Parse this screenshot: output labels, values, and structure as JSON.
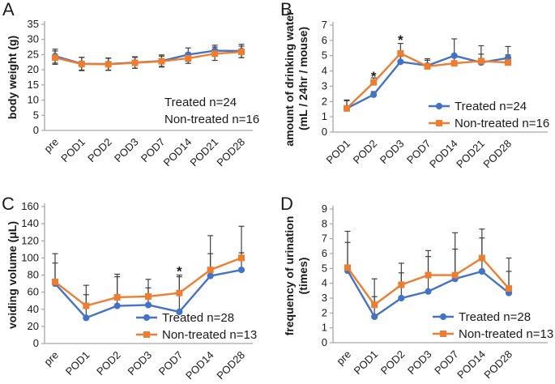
{
  "figure": {
    "description": "Four-panel line figure with error bars comparing Treated vs Non-treated mice over post-operative days"
  },
  "style_colors": {
    "treated": "#4472C4",
    "non_treated": "#ED7D31",
    "error_bar": "#404040",
    "axis": "#A6A6A6",
    "text": "#1A1A1A",
    "background": "#FFFFFF"
  },
  "chart_data": [
    {
      "type": "line",
      "panel": "A",
      "title": "",
      "xlabel": "",
      "ylabel": "body weight (g)",
      "ylabel_lines": [
        "body weight (g)"
      ],
      "ylim": [
        0,
        35
      ],
      "ystep": 5,
      "grid": false,
      "categories": [
        "pre",
        "POD1",
        "POD2",
        "POD3",
        "POD7",
        "POD14",
        "POD21",
        "POD28"
      ],
      "series": [
        {
          "name": "Treated n=24",
          "marker": "circle",
          "color": "#4472C4",
          "values": [
            24.5,
            22.0,
            21.9,
            22.4,
            22.9,
            25.0,
            26.3,
            26.2
          ],
          "err_up": [
            2.3,
            2.1,
            2.0,
            1.9,
            2.0,
            2.2,
            1.8,
            2.2
          ],
          "err_down": [
            2.3,
            2.1,
            2.0,
            1.9,
            2.0,
            2.2,
            1.8,
            2.2
          ]
        },
        {
          "name": "Non-treated n=16",
          "marker": "square",
          "color": "#ED7D31",
          "values": [
            24.0,
            21.9,
            21.8,
            22.3,
            22.8,
            23.8,
            25.3,
            25.9
          ],
          "err_up": [
            2.2,
            2.2,
            2.0,
            1.8,
            1.7,
            1.7,
            2.2,
            1.9
          ],
          "err_down": [
            2.2,
            2.2,
            2.0,
            1.8,
            1.7,
            1.7,
            2.2,
            1.9
          ]
        }
      ],
      "legend": {
        "style": "text",
        "position": "inside-right-bottom"
      },
      "annotations": []
    },
    {
      "type": "line",
      "panel": "B",
      "title": "",
      "xlabel": "",
      "ylabel": "amount of drinking water (mL / 24hr / mouse)",
      "ylabel_lines": [
        "amount of drinking water",
        "(mL / 24hr / mouse)"
      ],
      "ylim": [
        0,
        7
      ],
      "ystep": 1,
      "grid": false,
      "categories": [
        "POD1",
        "POD2",
        "POD3",
        "POD7",
        "POD14",
        "POD21",
        "POD28"
      ],
      "series": [
        {
          "name": "Treated n=24",
          "marker": "circle",
          "color": "#4472C4",
          "values": [
            1.55,
            2.45,
            4.6,
            4.35,
            5.0,
            4.55,
            4.85
          ],
          "err_up": [
            0.55,
            0.2,
            0.35,
            0.45,
            1.1,
            0.55,
            0.75
          ],
          "err_down": [
            0,
            0,
            0,
            0,
            0,
            0,
            0
          ]
        },
        {
          "name": "Non-treated n=16",
          "marker": "square",
          "color": "#ED7D31",
          "values": [
            1.55,
            3.25,
            5.15,
            4.3,
            4.5,
            4.65,
            4.55
          ],
          "err_up": [
            0.5,
            0.3,
            0.65,
            0.4,
            0.4,
            1.0,
            0.5
          ],
          "err_down": [
            0,
            0,
            0,
            0,
            0,
            0,
            0
          ]
        }
      ],
      "legend": {
        "style": "marker",
        "position": "inside-right-bottom"
      },
      "annotations": [
        {
          "category": "POD2",
          "y": 3.6,
          "label": "*"
        },
        {
          "category": "POD3",
          "y": 6.0,
          "label": "*"
        }
      ]
    },
    {
      "type": "line",
      "panel": "C",
      "title": "",
      "xlabel": "",
      "ylabel": "voiding volume (μL)",
      "ylabel_lines": [
        "voiding volume (μL)"
      ],
      "ylim": [
        0,
        160
      ],
      "ystep": 20,
      "grid": false,
      "categories": [
        "pre",
        "POD1",
        "POD2",
        "POD3",
        "POD7",
        "POD14",
        "POD28"
      ],
      "series": [
        {
          "name": "Treated n=28",
          "marker": "circle",
          "color": "#4472C4",
          "values": [
            70,
            30,
            44,
            45,
            37,
            79,
            86
          ],
          "err_up": [
            24,
            27,
            34,
            20,
            41,
            26,
            20
          ],
          "err_down": [
            0,
            0,
            0,
            0,
            0,
            0,
            0
          ]
        },
        {
          "name": "Non-treated n=13",
          "marker": "square",
          "color": "#ED7D31",
          "values": [
            72,
            44,
            54,
            55,
            59,
            86,
            100
          ],
          "err_up": [
            33,
            24,
            27,
            20,
            21,
            40,
            37
          ],
          "err_down": [
            0,
            0,
            0,
            0,
            0,
            0,
            0
          ]
        }
      ],
      "legend": {
        "style": "marker",
        "position": "inside-right-bottom"
      },
      "annotations": [
        {
          "category": "POD7",
          "y": 84,
          "label": "*"
        }
      ]
    },
    {
      "type": "line",
      "panel": "D",
      "title": "",
      "xlabel": "",
      "ylabel": "frequency of urination (times)",
      "ylabel_lines": [
        "frequency of urination",
        "(times)"
      ],
      "ylim": [
        0,
        9
      ],
      "ystep": 1,
      "grid": false,
      "categories": [
        "pre",
        "POD1",
        "POD2",
        "POD3",
        "POD7",
        "POD14",
        "POD28"
      ],
      "series": [
        {
          "name": "Treated n=28",
          "marker": "circle",
          "color": "#4472C4",
          "values": [
            4.85,
            1.75,
            3.0,
            3.45,
            4.3,
            4.8,
            3.35
          ],
          "err_up": [
            1.9,
            1.35,
            1.7,
            2.35,
            2.0,
            2.25,
            1.45
          ],
          "err_down": [
            0,
            0,
            0,
            0,
            0,
            0,
            0
          ]
        },
        {
          "name": "Non-treated n=13",
          "marker": "square",
          "color": "#ED7D31",
          "values": [
            5.05,
            2.55,
            3.9,
            4.55,
            4.55,
            5.7,
            3.65
          ],
          "err_up": [
            2.45,
            1.75,
            1.45,
            1.65,
            2.85,
            1.95,
            2.05
          ],
          "err_down": [
            0,
            0,
            0,
            0,
            0,
            0,
            0
          ]
        }
      ],
      "legend": {
        "style": "marker",
        "position": "inside-right-bottom"
      },
      "annotations": []
    }
  ]
}
